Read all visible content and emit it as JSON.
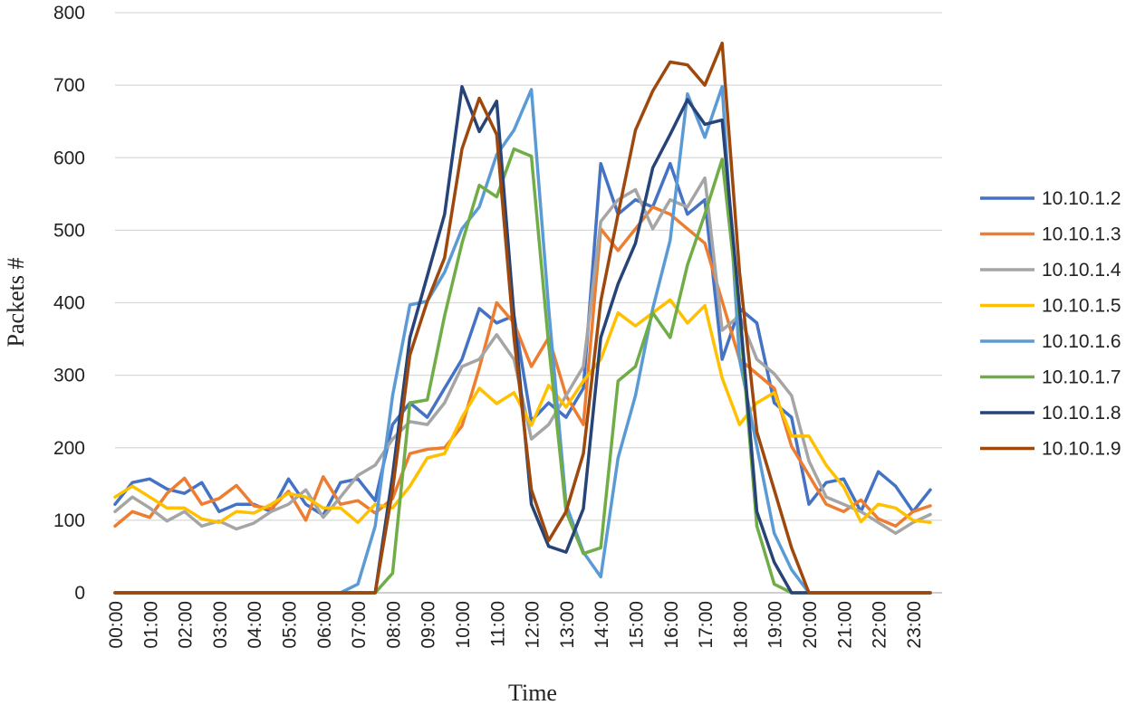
{
  "chart_data": {
    "type": "line",
    "title": "",
    "xlabel": "Time",
    "ylabel": "Packets #",
    "ylim": [
      0,
      800
    ],
    "yticks": [
      0,
      100,
      200,
      300,
      400,
      500,
      600,
      700,
      800
    ],
    "grid": true,
    "legend_position": "right",
    "x_tick_labels": [
      "00:00",
      "01:00",
      "02:00",
      "03:00",
      "04:00",
      "05:00",
      "06:00",
      "07:00",
      "08:00",
      "09:00",
      "10:00",
      "11:00",
      "12:00",
      "13:00",
      "14:00",
      "15:00",
      "16:00",
      "17:00",
      "18:00",
      "19:00",
      "20:00",
      "21:00",
      "22:00",
      "23:00"
    ],
    "x_tick_every": 2,
    "x": [
      "00:00",
      "00:30",
      "01:00",
      "01:30",
      "02:00",
      "02:30",
      "03:00",
      "03:30",
      "04:00",
      "04:30",
      "05:00",
      "05:30",
      "06:00",
      "06:30",
      "07:00",
      "07:30",
      "08:00",
      "08:30",
      "09:00",
      "09:30",
      "10:00",
      "10:30",
      "11:00",
      "11:30",
      "12:00",
      "12:30",
      "13:00",
      "13:30",
      "14:00",
      "14:30",
      "15:00",
      "15:30",
      "16:00",
      "16:30",
      "17:00",
      "17:30",
      "18:00",
      "18:30",
      "19:00",
      "19:30",
      "20:00",
      "20:30",
      "21:00",
      "21:30",
      "22:00",
      "22:30",
      "23:00",
      "23:30"
    ],
    "series": [
      {
        "name": "10.10.1.2",
        "color": "#4472c4",
        "values": [
          122,
          152,
          157,
          143,
          137,
          152,
          112,
          122,
          122,
          112,
          157,
          122,
          107,
          152,
          157,
          127,
          232,
          262,
          242,
          282,
          322,
          392,
          372,
          382,
          237,
          262,
          242,
          282,
          592,
          522,
          542,
          532,
          592,
          522,
          542,
          322,
          392,
          372,
          262,
          242,
          122,
          152,
          157,
          112,
          167,
          147,
          112,
          142
        ]
      },
      {
        "name": "10.10.1.3",
        "color": "#ed7d31",
        "values": [
          92,
          112,
          104,
          137,
          158,
          122,
          130,
          148,
          120,
          116,
          140,
          100,
          160,
          122,
          127,
          110,
          130,
          192,
          198,
          200,
          230,
          310,
          400,
          372,
          312,
          352,
          272,
          232,
          502,
          472,
          502,
          532,
          522,
          502,
          482,
          402,
          322,
          302,
          282,
          202,
          162,
          122,
          112,
          128,
          102,
          92,
          112,
          120
        ]
      },
      {
        "name": "10.10.1.4",
        "color": "#a5a5a5",
        "values": [
          112,
          132,
          117,
          99,
          112,
          92,
          99,
          88,
          96,
          112,
          122,
          142,
          104,
          132,
          162,
          176,
          212,
          236,
          232,
          262,
          312,
          322,
          356,
          322,
          212,
          232,
          272,
          312,
          512,
          542,
          556,
          502,
          542,
          532,
          572,
          362,
          382,
          322,
          302,
          272,
          182,
          132,
          122,
          112,
          97,
          82,
          97,
          108
        ]
      },
      {
        "name": "10.10.1.5",
        "color": "#ffc000",
        "values": [
          132,
          147,
          132,
          117,
          117,
          102,
          97,
          112,
          110,
          122,
          137,
          132,
          117,
          117,
          97,
          122,
          117,
          147,
          186,
          192,
          242,
          282,
          261,
          276,
          231,
          286,
          256,
          292,
          322,
          386,
          368,
          386,
          404,
          372,
          396,
          296,
          232,
          262,
          276,
          216,
          216,
          176,
          146,
          98,
          122,
          117,
          100,
          97
        ]
      },
      {
        "name": "10.10.1.6",
        "color": "#5b9bd5",
        "values": [
          0,
          0,
          0,
          0,
          0,
          0,
          0,
          0,
          0,
          0,
          0,
          0,
          0,
          0,
          12,
          92,
          272,
          397,
          402,
          442,
          502,
          532,
          604,
          638,
          694,
          392,
          122,
          56,
          22,
          186,
          272,
          392,
          486,
          688,
          628,
          698,
          322,
          202,
          82,
          32,
          0,
          0,
          0,
          0,
          0,
          0,
          0,
          0
        ]
      },
      {
        "name": "10.10.1.7",
        "color": "#70ad47",
        "values": [
          0,
          0,
          0,
          0,
          0,
          0,
          0,
          0,
          0,
          0,
          0,
          0,
          0,
          0,
          0,
          0,
          27,
          262,
          266,
          382,
          482,
          562,
          546,
          612,
          602,
          342,
          112,
          54,
          62,
          292,
          312,
          386,
          352,
          452,
          522,
          598,
          382,
          92,
          12,
          0,
          0,
          0,
          0,
          0,
          0,
          0,
          0,
          0
        ]
      },
      {
        "name": "10.10.1.8",
        "color": "#264478",
        "values": [
          0,
          0,
          0,
          0,
          0,
          0,
          0,
          0,
          0,
          0,
          0,
          0,
          0,
          0,
          0,
          0,
          162,
          352,
          437,
          522,
          698,
          636,
          678,
          382,
          122,
          64,
          56,
          116,
          352,
          426,
          482,
          586,
          632,
          680,
          646,
          652,
          392,
          112,
          42,
          0,
          0,
          0,
          0,
          0,
          0,
          0,
          0,
          0
        ]
      },
      {
        "name": "10.10.1.9",
        "color": "#9e480e",
        "values": [
          0,
          0,
          0,
          0,
          0,
          0,
          0,
          0,
          0,
          0,
          0,
          0,
          0,
          0,
          0,
          0,
          142,
          328,
          402,
          462,
          612,
          682,
          632,
          352,
          142,
          72,
          112,
          192,
          402,
          522,
          638,
          692,
          732,
          728,
          700,
          758,
          442,
          222,
          142,
          62,
          0,
          0,
          0,
          0,
          0,
          0,
          0,
          0
        ]
      }
    ]
  }
}
